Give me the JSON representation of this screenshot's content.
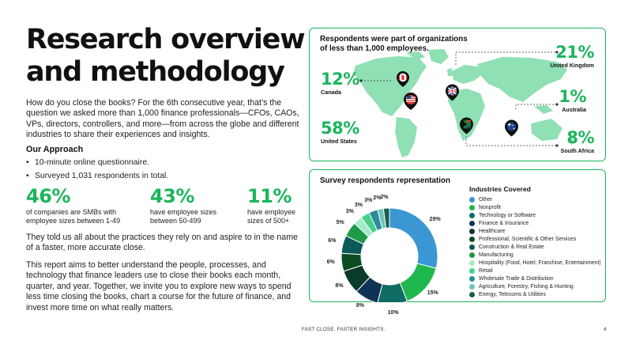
{
  "title": "Research overview and methodology",
  "intro": "How do you close the books? For the 6th consecutive year, that’s the question we asked more than 1,000 finance professionals—CFOs, CAOs, VPs, directors, controllers, and more—from across the globe and different industries to share their experiences and insights.",
  "approach": {
    "heading": "Our Approach",
    "items": [
      "10-minute online questionnaire.",
      "Surveyed 1,031 respondents in total."
    ]
  },
  "stats": [
    {
      "value": "46%",
      "caption_line1": "of companies are SMBs with",
      "caption_line2": "employee sizes between 1-49"
    },
    {
      "value": "43%",
      "caption_line1": "have employee sizes",
      "caption_line2": "between 50-499"
    },
    {
      "value": "11%",
      "caption_line1": "have employee",
      "caption_line2": "sizes of 500+"
    }
  ],
  "paragraphs": [
    "They told us all about the practices they rely on and aspire to in the name of a faster, more accurate close.",
    "This report aims to better understand the people, processes, and technology that finance leaders use to close their books each month, quarter, and year. Together, we invite you to explore new ways to spend less time closing the books, chart a course for the future of finance, and invest more time on what really matters."
  ],
  "map_card": {
    "heading_line1": "Respondents were part of organizations",
    "heading_line2": "of less than 1,000 employees.",
    "countries": [
      {
        "value": "12%",
        "name": "Canada"
      },
      {
        "value": "58%",
        "name": "United States"
      },
      {
        "value": "21%",
        "name": "United Kingdom"
      },
      {
        "value": "1%",
        "name": "Australia"
      },
      {
        "value": "8%",
        "name": "South Africa"
      }
    ]
  },
  "chart_card": {
    "heading": "Survey respondents representation",
    "legend_title": "Industries Covered"
  },
  "chart_data": {
    "type": "pie",
    "title": "Survey respondents representation",
    "legend_title": "Industries Covered",
    "categories": [
      "Other",
      "Nonprofit",
      "Technology or Software",
      "Finance & Insurance",
      "Healthcare",
      "Professional, Scientific & Other Services",
      "Construction & Real Estate",
      "Manufacturing",
      "Hospitality (Food, Hotel, Franchise, Entertainment)",
      "Retail",
      "Wholesale Trade & Distribution",
      "Agriculture, Forestry, Fishing & Hunting",
      "Energy, Telecoms & Utilities"
    ],
    "values": [
      29,
      15,
      10,
      8,
      8,
      6,
      6,
      5,
      3,
      3,
      3,
      2,
      2
    ],
    "labels": [
      "29%",
      "15%",
      "10%",
      "8%",
      "8%",
      "6%",
      "6%",
      "5%",
      "3%",
      "3%",
      "3%",
      "2%",
      "2%"
    ],
    "colors": [
      "#3a97d4",
      "#1fb84f",
      "#0f6b63",
      "#0f3356",
      "#0a3a2c",
      "#0b4d22",
      "#0b5a57",
      "#1f9a48",
      "#a6ebcb",
      "#46d08a",
      "#2c8c9b",
      "#6cc4bb",
      "#1a5f4a"
    ],
    "legend_placement": "right"
  },
  "footer": "FAST CLOSE. FASTER INSIGHTS.",
  "page_number": "4",
  "colors": {
    "accent": "#1bb55c",
    "map_land": "#8fe0b4"
  }
}
